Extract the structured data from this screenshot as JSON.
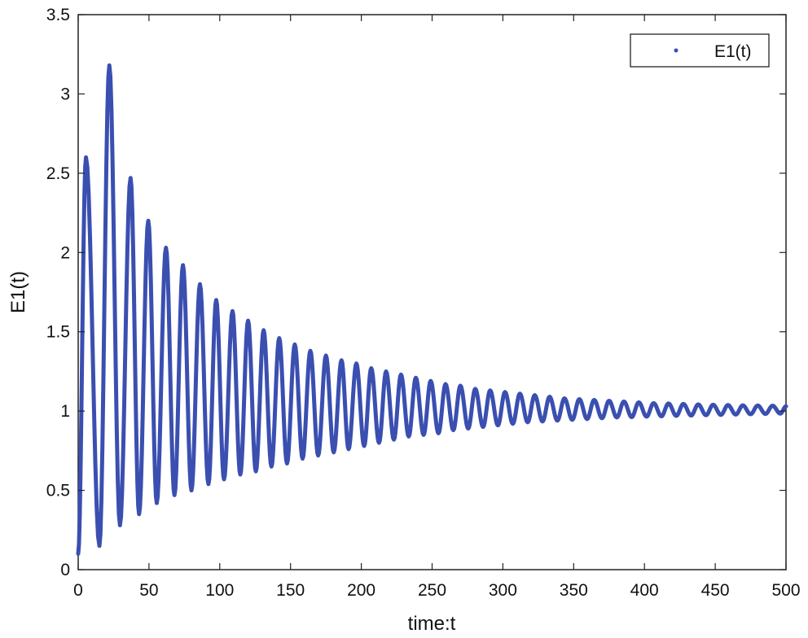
{
  "chart_data": {
    "type": "line",
    "title": "",
    "xlabel": "time:t",
    "ylabel": "E1(t)",
    "xlim": [
      0,
      500
    ],
    "ylim": [
      0,
      3.5
    ],
    "xticks": [
      0,
      50,
      100,
      150,
      200,
      250,
      300,
      350,
      400,
      450,
      500
    ],
    "yticks": [
      0,
      0.5,
      1,
      1.5,
      2,
      2.5,
      3,
      3.5
    ],
    "xtick_labels": [
      "0",
      "50",
      "100",
      "150",
      "200",
      "250",
      "300",
      "350",
      "400",
      "450",
      "500"
    ],
    "ytick_labels": [
      "0",
      "0.5",
      "1",
      "1.5",
      "2",
      "2.5",
      "3",
      "3.5"
    ],
    "grid": false,
    "legend_position": "top-right",
    "series": [
      {
        "name": "E1(t)",
        "color": "#3a4fb0",
        "start": {
          "x": 0,
          "y": 0.1
        },
        "peaks": [
          [
            5.5,
            2.6
          ],
          [
            22,
            3.18
          ],
          [
            37,
            2.47
          ],
          [
            49.5,
            2.2
          ],
          [
            62,
            2.03
          ],
          [
            74,
            1.92
          ],
          [
            86,
            1.8
          ],
          [
            97.5,
            1.7
          ],
          [
            109,
            1.63
          ],
          [
            120,
            1.57
          ],
          [
            131,
            1.51
          ],
          [
            142,
            1.46
          ],
          [
            153,
            1.42
          ],
          [
            164,
            1.38
          ],
          [
            175,
            1.35
          ],
          [
            186,
            1.32
          ],
          [
            196.5,
            1.3
          ],
          [
            207,
            1.27
          ],
          [
            217.5,
            1.25
          ],
          [
            228,
            1.23
          ],
          [
            238.5,
            1.21
          ],
          [
            249,
            1.19
          ],
          [
            259.5,
            1.17
          ],
          [
            270,
            1.16
          ],
          [
            280.5,
            1.14
          ],
          [
            291,
            1.13
          ],
          [
            301.5,
            1.12
          ],
          [
            312,
            1.11
          ],
          [
            322.5,
            1.1
          ],
          [
            333,
            1.09
          ],
          [
            343.5,
            1.08
          ],
          [
            354,
            1.075
          ],
          [
            364.5,
            1.07
          ],
          [
            375,
            1.065
          ],
          [
            385.5,
            1.06
          ],
          [
            396,
            1.055
          ],
          [
            406.5,
            1.05
          ],
          [
            417,
            1.048
          ],
          [
            427.5,
            1.045
          ],
          [
            438,
            1.042
          ],
          [
            448.5,
            1.04
          ],
          [
            459,
            1.038
          ],
          [
            469.5,
            1.036
          ],
          [
            480,
            1.035
          ],
          [
            490.5,
            1.034
          ]
        ],
        "troughs": [
          [
            15,
            0.15
          ],
          [
            29.5,
            0.28
          ],
          [
            43,
            0.35
          ],
          [
            55.5,
            0.42
          ],
          [
            68,
            0.47
          ],
          [
            80,
            0.5
          ],
          [
            92,
            0.54
          ],
          [
            103,
            0.57
          ],
          [
            114.5,
            0.6
          ],
          [
            125.5,
            0.62
          ],
          [
            136.5,
            0.65
          ],
          [
            147.5,
            0.67
          ],
          [
            158.5,
            0.7
          ],
          [
            169.5,
            0.72
          ],
          [
            180.5,
            0.74
          ],
          [
            191,
            0.76
          ],
          [
            202,
            0.78
          ],
          [
            212.5,
            0.8
          ],
          [
            223,
            0.82
          ],
          [
            233.5,
            0.84
          ],
          [
            244,
            0.85
          ],
          [
            254.5,
            0.86
          ],
          [
            265,
            0.88
          ],
          [
            275.5,
            0.89
          ],
          [
            286,
            0.9
          ],
          [
            296.5,
            0.91
          ],
          [
            307,
            0.92
          ],
          [
            317.5,
            0.93
          ],
          [
            328,
            0.935
          ],
          [
            338.5,
            0.94
          ],
          [
            349,
            0.945
          ],
          [
            359.5,
            0.95
          ],
          [
            370,
            0.955
          ],
          [
            380.5,
            0.96
          ],
          [
            391,
            0.962
          ],
          [
            401.5,
            0.965
          ],
          [
            412,
            0.967
          ],
          [
            422.5,
            0.97
          ],
          [
            433,
            0.972
          ],
          [
            443.5,
            0.974
          ],
          [
            454,
            0.976
          ],
          [
            464.5,
            0.978
          ],
          [
            475,
            0.98
          ],
          [
            485.5,
            0.982
          ],
          [
            496,
            0.984
          ]
        ],
        "end": {
          "x": 500,
          "y": 1.03
        }
      }
    ]
  }
}
